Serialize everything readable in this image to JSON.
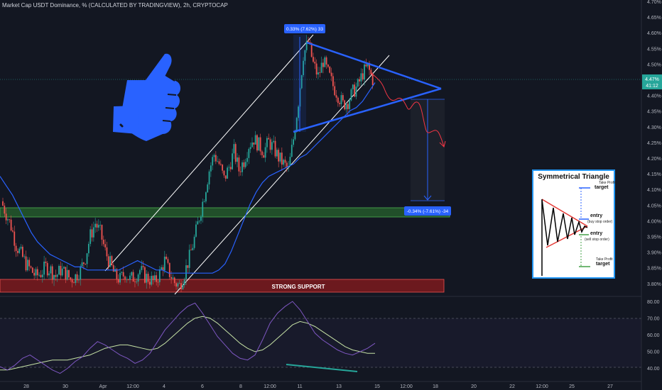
{
  "header": {
    "title": "Market Cap USDT Dominance, % (CALCULATED BY TRADINGVIEW), 2h, CRYPTOCAP"
  },
  "price_axis": {
    "ticks": [
      "4.70%",
      "4.65%",
      "4.60%",
      "4.55%",
      "4.50%",
      "4.45%",
      "4.40%",
      "4.35%",
      "4.30%",
      "4.25%",
      "4.20%",
      "4.15%",
      "4.10%",
      "4.05%",
      "4.00%",
      "3.95%",
      "3.90%",
      "3.85%",
      "3.80%"
    ],
    "current_price": "4.47%",
    "countdown": "41:12"
  },
  "rsi_axis": {
    "ticks": [
      "80.00",
      "70.00",
      "60.00",
      "50.00",
      "40.00"
    ]
  },
  "time_axis": {
    "ticks": [
      "28",
      "30",
      "Apr",
      "12:00",
      "4",
      "6",
      "8",
      "12:00",
      "11",
      "13",
      "15",
      "12:00",
      "18",
      "20",
      "22",
      "12:00",
      "25",
      "27"
    ]
  },
  "annotations": {
    "measure_up": "0.33% (7.62%) 33",
    "measure_down": "-0.34% (-7.61%) -34",
    "support_label": "STRONG SUPPORT"
  },
  "guide": {
    "title": "Symmetrical Triangle",
    "take_profit_top": "Take Profit",
    "target_top": "target",
    "entry_buy": "entry",
    "entry_buy_note": "(buy stop order)",
    "entry_sell": "entry",
    "entry_sell_note": "(sell stop order)",
    "take_profit_bottom": "Take Profit",
    "target_bottom": "target"
  },
  "colors": {
    "background": "#131722",
    "candle_up": "#26a69a",
    "candle_down": "#ef5350",
    "moving_average": "#2962ff",
    "rsi": "#7e57c2",
    "rsi_ma": "#c5e1a5",
    "support_zone": "#b71c1c",
    "demand_zone": "#2e7d32",
    "triangle": "#2962ff",
    "projection": "#f23645",
    "thumbs_up": "#2962ff"
  },
  "chart_data": {
    "type": "candlestick",
    "indicators": [
      "moving average",
      "RSI with moving average"
    ],
    "scale": "linear",
    "grid": false,
    "price_range": [
      3.78,
      4.72
    ],
    "rsi_range": [
      34,
      84
    ],
    "close_path": [
      [
        4.08,
        4.04,
        4.0,
        3.94,
        3.91,
        3.88,
        3.86,
        3.84,
        3.85,
        3.87,
        3.86,
        3.84,
        3.86,
        3.85,
        3.83,
        3.84,
        3.86,
        3.9,
        3.97,
        4.01,
        3.98,
        3.92,
        3.88,
        3.84,
        3.83,
        3.85,
        3.83,
        3.84,
        3.86,
        3.84,
        3.83,
        3.82,
        3.85,
        3.89,
        3.85,
        3.82,
        3.81,
        3.85,
        3.9,
        3.96,
        4.03,
        4.1,
        4.18,
        4.23,
        4.2,
        4.15,
        4.19,
        4.24,
        4.18,
        4.21,
        4.26,
        4.28,
        4.26,
        4.24,
        4.27,
        4.25,
        4.22,
        4.2,
        4.18,
        4.28,
        4.4,
        4.55,
        4.59,
        4.52,
        4.48,
        4.53,
        4.49,
        4.45,
        4.42,
        4.39,
        4.4,
        4.43,
        4.45,
        4.49,
        4.51,
        4.47
      ]
    ],
    "ma_path": [
      4.16,
      4.13,
      4.1,
      4.06,
      4.02,
      3.98,
      3.95,
      3.93,
      3.91,
      3.9,
      3.89,
      3.88,
      3.87,
      3.87,
      3.86,
      3.86,
      3.86,
      3.86,
      3.86,
      3.86,
      3.87,
      3.88,
      3.89,
      3.88,
      3.87,
      3.86,
      3.86,
      3.85,
      3.85,
      3.85,
      3.85,
      3.85,
      3.85,
      3.85,
      3.85,
      3.86,
      3.88,
      3.92,
      3.97,
      4.02,
      4.07,
      4.11,
      4.14,
      4.16,
      4.17,
      4.18,
      4.19,
      4.2,
      4.22,
      4.23,
      4.25,
      4.27,
      4.29,
      4.31,
      4.33,
      4.35,
      4.37,
      4.38,
      4.4,
      4.43,
      4.46
    ],
    "rsi_path": [
      42,
      40,
      43,
      47,
      49,
      46,
      43,
      40,
      38,
      41,
      45,
      48,
      53,
      57,
      55,
      52,
      49,
      47,
      44,
      46,
      50,
      57,
      64,
      69,
      74,
      78,
      80,
      74,
      67,
      60,
      55,
      50,
      47,
      46,
      49,
      58,
      68,
      74,
      78,
      81,
      76,
      69,
      62,
      58,
      55,
      52,
      50,
      49,
      51,
      53,
      56
    ],
    "rsi_ma_path": [
      40,
      40,
      41,
      42,
      43,
      44,
      45,
      46,
      46,
      46,
      47,
      48,
      49,
      51,
      53,
      54,
      55,
      55,
      54,
      53,
      52,
      53,
      56,
      60,
      64,
      68,
      71,
      72,
      71,
      68,
      64,
      60,
      56,
      53,
      51,
      52,
      55,
      59,
      63,
      67,
      69,
      68,
      66,
      63,
      60,
      57,
      54,
      52,
      51,
      50,
      50
    ],
    "zones": [
      {
        "label": "STRONG SUPPORT",
        "low": 3.8,
        "high": 3.83
      },
      {
        "low": 4.01,
        "high": 4.03
      }
    ],
    "measurements": [
      {
        "label": "0.33% (7.62%) 33",
        "from": 4.28,
        "to": 4.61
      },
      {
        "label": "-0.34% (-7.61%) -34",
        "from": 4.4,
        "to": 4.06
      }
    ],
    "triangle": {
      "top_left": 4.59,
      "bottom_left": 4.28,
      "apex": 4.43
    },
    "last_price": 4.47
  }
}
